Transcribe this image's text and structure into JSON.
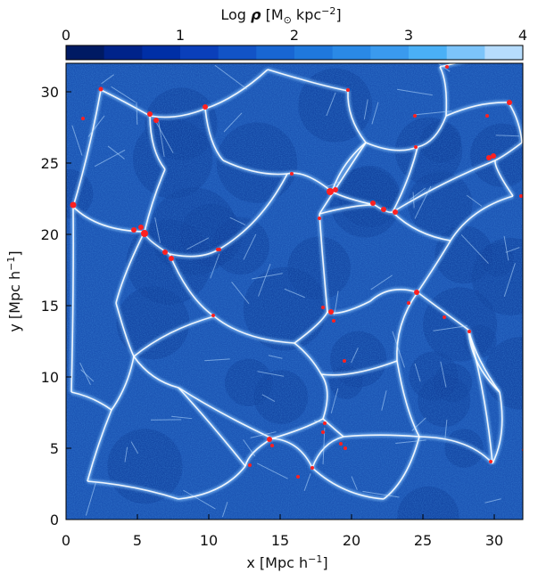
{
  "figure": {
    "colorbar": {
      "label_prefix": "Log ",
      "label_symbol": "ρ",
      "label_units_open": " [M",
      "label_sun": "⊙",
      "label_units_mid": " kpc",
      "label_exp": "−2",
      "label_units_close": "]",
      "min": 0,
      "max": 4,
      "ticks": [
        "0",
        "1",
        "2",
        "3",
        "4"
      ],
      "colors": [
        "#001a63",
        "#00238a",
        "#002fa6",
        "#0a3fba",
        "#1253c6",
        "#1866d2",
        "#1f78dc",
        "#2a89e6",
        "#3a9aee",
        "#4ab0f6",
        "#7cc4fa",
        "#b6dcfd"
      ]
    },
    "x_axis": {
      "label_main": "x [Mpc h",
      "label_exp": "−1",
      "label_close": "]",
      "ticks": [
        "0",
        "5",
        "10",
        "15",
        "20",
        "25",
        "30"
      ],
      "range": [
        0,
        32
      ]
    },
    "y_axis": {
      "label_main": "y [Mpc h",
      "label_exp": "−1",
      "label_close": "]",
      "ticks": [
        "0",
        "5",
        "10",
        "15",
        "20",
        "25",
        "30"
      ],
      "range": [
        0,
        32
      ]
    },
    "colors": {
      "background": "#1c55b4",
      "void": "#103f9a",
      "filament": "#ffffff",
      "halo": "#ff2020"
    }
  }
}
